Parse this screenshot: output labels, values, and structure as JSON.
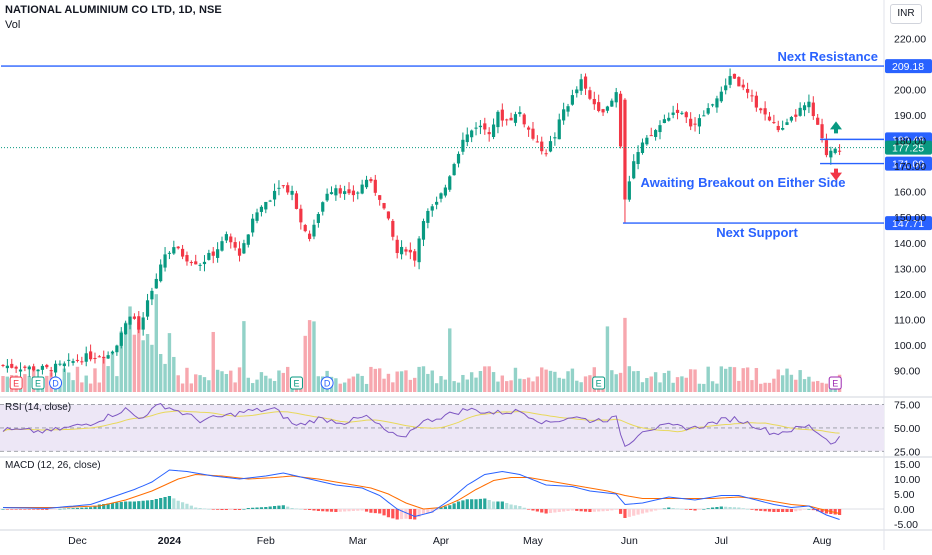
{
  "header": {
    "title": "NATIONAL ALUMINIUM CO LTD, 1D, NSE",
    "volume_label": "Vol",
    "currency": "INR"
  },
  "panes": {
    "rsi_label": "RSI (14, close)",
    "macd_label": "MACD (12, 26, close)"
  },
  "chart_data": {
    "type": "candlestick",
    "title": "",
    "y_axis": {
      "range": [
        80,
        228
      ],
      "ticks": [
        90,
        100,
        110,
        120,
        130,
        140,
        150,
        160,
        170,
        180,
        190,
        200,
        220
      ]
    },
    "x_axis": {
      "ticks": [
        {
          "label": "Dec",
          "day": 17,
          "bold": false
        },
        {
          "label": "2024",
          "day": 38,
          "bold": true
        },
        {
          "label": "Feb",
          "day": 60,
          "bold": false
        },
        {
          "label": "Mar",
          "day": 81,
          "bold": false
        },
        {
          "label": "Apr",
          "day": 100,
          "bold": false
        },
        {
          "label": "May",
          "day": 121,
          "bold": false
        },
        {
          "label": "Jun",
          "day": 143,
          "bold": false
        },
        {
          "label": "Jul",
          "day": 164,
          "bold": false
        },
        {
          "label": "Aug",
          "day": 187,
          "bold": false
        }
      ]
    },
    "close_series_waypoints": [
      [
        0,
        92
      ],
      [
        6,
        91
      ],
      [
        10,
        90.5
      ],
      [
        14,
        92
      ],
      [
        18,
        95
      ],
      [
        22,
        96
      ],
      [
        25,
        98
      ],
      [
        27,
        104
      ],
      [
        29,
        112
      ],
      [
        31,
        106
      ],
      [
        33,
        116
      ],
      [
        35,
        126
      ],
      [
        37,
        136
      ],
      [
        39,
        138
      ],
      [
        42,
        134
      ],
      [
        45,
        132
      ],
      [
        48,
        136
      ],
      [
        51,
        142
      ],
      [
        54,
        136
      ],
      [
        56,
        144
      ],
      [
        58,
        152
      ],
      [
        61,
        158
      ],
      [
        63,
        163
      ],
      [
        66,
        160
      ],
      [
        68,
        148
      ],
      [
        70,
        142
      ],
      [
        72,
        152
      ],
      [
        74,
        160
      ],
      [
        76,
        162
      ],
      [
        79,
        158
      ],
      [
        81,
        160
      ],
      [
        83,
        165
      ],
      [
        86,
        158
      ],
      [
        88,
        148
      ],
      [
        90,
        136
      ],
      [
        92,
        138
      ],
      [
        94,
        134
      ],
      [
        96,
        150
      ],
      [
        99,
        155
      ],
      [
        101,
        162
      ],
      [
        103,
        172
      ],
      [
        105,
        180
      ],
      [
        108,
        186
      ],
      [
        111,
        184
      ],
      [
        113,
        190
      ],
      [
        115,
        188
      ],
      [
        118,
        191
      ],
      [
        120,
        184
      ],
      [
        122,
        178
      ],
      [
        124,
        176
      ],
      [
        126,
        182
      ],
      [
        128,
        192
      ],
      [
        130,
        197
      ],
      [
        132,
        203
      ],
      [
        134,
        196
      ],
      [
        136,
        193
      ],
      [
        138,
        192
      ],
      [
        140,
        199
      ],
      [
        142,
        158
      ],
      [
        144,
        172
      ],
      [
        146,
        178
      ],
      [
        148,
        182
      ],
      [
        150,
        186
      ],
      [
        152,
        190
      ],
      [
        154,
        192
      ],
      [
        156,
        188
      ],
      [
        158,
        186
      ],
      [
        160,
        190
      ],
      [
        162,
        195
      ],
      [
        164,
        198
      ],
      [
        166,
        206
      ],
      [
        168,
        202
      ],
      [
        170,
        198
      ],
      [
        172,
        194
      ],
      [
        174,
        190
      ],
      [
        176,
        186
      ],
      [
        178,
        184
      ],
      [
        180,
        188
      ],
      [
        182,
        192
      ],
      [
        184,
        194
      ],
      [
        186,
        185
      ],
      [
        188,
        175
      ],
      [
        190,
        178
      ],
      [
        191,
        177.25
      ]
    ],
    "horizontal_levels": [
      {
        "value": 209.18,
        "label": "209.18",
        "color": "#2962ff",
        "style": "solid",
        "from_day": 0
      },
      {
        "value": 180.48,
        "label": "180.48",
        "color": "#2962ff",
        "style": "solid",
        "from_day": 187
      },
      {
        "value": 171.0,
        "label": "171.00",
        "color": "#2962ff",
        "style": "solid",
        "from_day": 187
      },
      {
        "value": 147.71,
        "label": "147.71",
        "color": "#2962ff",
        "style": "solid",
        "from_day": 142
      },
      {
        "value": 177.25,
        "label": "177.25",
        "color": "#089981",
        "style": "dotted",
        "from_day": 0
      }
    ],
    "annotations": {
      "resistance": "Next Resistance",
      "support": "Next Support",
      "breakout": "Awaiting Breakout on Either Side"
    },
    "event_markers": [
      {
        "letter": "E",
        "day": 3,
        "kind": "earnings-red"
      },
      {
        "letter": "E",
        "day": 8,
        "kind": "earnings-teal"
      },
      {
        "letter": "D",
        "day": 12,
        "kind": "dividend"
      },
      {
        "letter": "E",
        "day": 67,
        "kind": "earnings-teal"
      },
      {
        "letter": "D",
        "day": 74,
        "kind": "dividend"
      },
      {
        "letter": "E",
        "day": 136,
        "kind": "earnings-teal"
      },
      {
        "letter": "E",
        "day": 190,
        "kind": "earnings-purple"
      }
    ],
    "rsi": {
      "ticks": [
        75,
        50,
        25
      ],
      "range": [
        20,
        82
      ],
      "waypoints": [
        [
          0,
          48
        ],
        [
          10,
          46
        ],
        [
          20,
          55
        ],
        [
          28,
          70
        ],
        [
          31,
          60
        ],
        [
          36,
          75
        ],
        [
          39,
          70
        ],
        [
          45,
          58
        ],
        [
          50,
          62
        ],
        [
          56,
          68
        ],
        [
          62,
          70
        ],
        [
          67,
          52
        ],
        [
          72,
          60
        ],
        [
          78,
          56
        ],
        [
          83,
          62
        ],
        [
          88,
          45
        ],
        [
          91,
          38
        ],
        [
          95,
          55
        ],
        [
          100,
          62
        ],
        [
          106,
          70
        ],
        [
          112,
          66
        ],
        [
          118,
          68
        ],
        [
          124,
          55
        ],
        [
          130,
          62
        ],
        [
          134,
          58
        ],
        [
          140,
          60
        ],
        [
          142,
          30
        ],
        [
          146,
          48
        ],
        [
          152,
          52
        ],
        [
          158,
          50
        ],
        [
          164,
          58
        ],
        [
          167,
          60
        ],
        [
          172,
          52
        ],
        [
          176,
          44
        ],
        [
          180,
          48
        ],
        [
          184,
          52
        ],
        [
          187,
          42
        ],
        [
          189,
          34
        ],
        [
          191,
          40
        ]
      ]
    },
    "macd": {
      "ticks": [
        15.0,
        10.0,
        5.0,
        0.0,
        -5.0
      ],
      "range": [
        -7,
        17
      ],
      "macd_waypoints": [
        [
          0,
          0.5
        ],
        [
          10,
          0.2
        ],
        [
          20,
          1.5
        ],
        [
          26,
          4.5
        ],
        [
          30,
          6.5
        ],
        [
          34,
          9
        ],
        [
          38,
          13
        ],
        [
          42,
          12.5
        ],
        [
          48,
          11
        ],
        [
          54,
          10
        ],
        [
          60,
          11
        ],
        [
          64,
          12
        ],
        [
          70,
          10
        ],
        [
          76,
          8
        ],
        [
          82,
          7
        ],
        [
          86,
          4.5
        ],
        [
          90,
          0
        ],
        [
          94,
          -2.5
        ],
        [
          98,
          -1
        ],
        [
          102,
          3
        ],
        [
          106,
          8
        ],
        [
          110,
          11.5
        ],
        [
          114,
          12.5
        ],
        [
          118,
          11.5
        ],
        [
          124,
          8
        ],
        [
          130,
          7.5
        ],
        [
          134,
          6
        ],
        [
          140,
          5
        ],
        [
          142,
          1.5
        ],
        [
          146,
          2
        ],
        [
          152,
          4
        ],
        [
          158,
          3
        ],
        [
          164,
          4.5
        ],
        [
          168,
          4.5
        ],
        [
          172,
          3
        ],
        [
          176,
          1.5
        ],
        [
          180,
          0.5
        ],
        [
          184,
          1
        ],
        [
          188,
          -2
        ],
        [
          191,
          -3.5
        ]
      ],
      "signal_waypoints": [
        [
          0,
          0.5
        ],
        [
          12,
          0.5
        ],
        [
          22,
          1
        ],
        [
          28,
          3
        ],
        [
          34,
          6
        ],
        [
          40,
          10
        ],
        [
          44,
          11.5
        ],
        [
          50,
          11
        ],
        [
          56,
          10
        ],
        [
          62,
          10.5
        ],
        [
          66,
          11
        ],
        [
          72,
          10
        ],
        [
          78,
          8.5
        ],
        [
          84,
          7
        ],
        [
          88,
          5
        ],
        [
          92,
          2
        ],
        [
          96,
          0
        ],
        [
          100,
          0.5
        ],
        [
          104,
          3
        ],
        [
          108,
          6.5
        ],
        [
          112,
          9.5
        ],
        [
          116,
          10.5
        ],
        [
          120,
          10.5
        ],
        [
          126,
          9
        ],
        [
          132,
          7.5
        ],
        [
          138,
          6
        ],
        [
          142,
          4.5
        ],
        [
          146,
          3.5
        ],
        [
          150,
          3.5
        ],
        [
          156,
          3.5
        ],
        [
          162,
          3.5
        ],
        [
          168,
          4
        ],
        [
          172,
          3.5
        ],
        [
          176,
          2.5
        ],
        [
          180,
          1.5
        ],
        [
          184,
          1
        ],
        [
          188,
          -0.5
        ],
        [
          191,
          -1.5
        ]
      ]
    },
    "colors": {
      "up": "#089981",
      "down": "#f23645",
      "volume_up": "#92d2c8",
      "volume_down": "#f7a7ae",
      "rsi_line": "#7e57c2",
      "rsi_ma": "#e8d85a",
      "rsi_band": "#ede7f6",
      "macd_line": "#2962ff",
      "signal_line": "#ff6d00",
      "level_line": "#2962ff",
      "arrow_up": "#089981",
      "arrow_down": "#f23645"
    }
  }
}
